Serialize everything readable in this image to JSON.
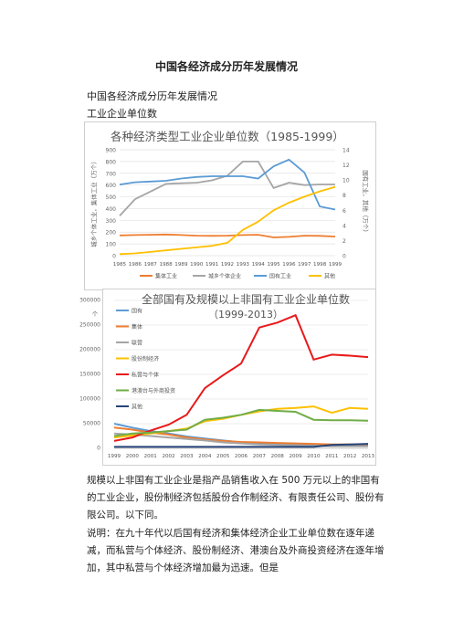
{
  "doc": {
    "title": "中国各经济成分历年发展情况",
    "subtitle": "中国各经济成分历年发展情况",
    "section": "工业企业单位数",
    "paragraph1": "规模以上非国有工业企业是指产品销售收入在 500 万元以上的非国有的工业企业，股份制经济包括股份合作制经济、有限责任公司、股份有限公司。以下同。",
    "paragraph2": "说明：在九十年代以后国有经济和集体经济企业工业单位数在逐年递减，而私营与个体经济、股份制经济、港澳台及外商投资经济在逐年增加，其中私营与个体经济增加最为迅速。但是"
  },
  "chart_data": [
    {
      "type": "line",
      "title": "各种经济类型工业企业单位数（1985-1999）",
      "ylabel": "城乡个体工业，集体工业（万个）",
      "y2label": "国有工业，其他（万个）",
      "x": [
        "1985",
        "1986",
        "1987",
        "1988",
        "1989",
        "1990",
        "1991",
        "1992",
        "1993",
        "1994",
        "1995",
        "1996",
        "1997",
        "1998",
        "1999"
      ],
      "ylim": [
        0,
        900
      ],
      "y2lim": [
        0,
        14
      ],
      "yticks": [
        "0",
        "100",
        "200",
        "300",
        "400",
        "500",
        "600",
        "700",
        "800",
        "900"
      ],
      "y2ticks": [
        "0",
        "2",
        "4",
        "6",
        "8",
        "10",
        "12",
        "14"
      ],
      "legend_position": "bottom",
      "series": [
        {
          "name": "集体工业",
          "axis": "left",
          "color": "#ed7d31",
          "values": [
            172,
            175,
            178,
            180,
            175,
            170,
            168,
            170,
            175,
            178,
            155,
            160,
            170,
            168,
            162
          ]
        },
        {
          "name": "城乡个体企业",
          "axis": "left",
          "color": "#a5a5a5",
          "values": [
            338,
            480,
            545,
            610,
            615,
            620,
            640,
            680,
            800,
            800,
            575,
            620,
            600,
            605,
            605
          ]
        },
        {
          "name": "国有工业",
          "axis": "right",
          "color": "#5b9bd5",
          "values": [
            9.4,
            9.7,
            9.8,
            9.9,
            10.2,
            10.4,
            10.5,
            10.5,
            10.5,
            10.2,
            11.8,
            12.7,
            11.0,
            6.5,
            6.1
          ]
        },
        {
          "name": "其他",
          "axis": "right",
          "color": "#ffc000",
          "values": [
            0.2,
            0.3,
            0.5,
            0.7,
            0.9,
            1.1,
            1.3,
            1.7,
            3.4,
            4.5,
            6.0,
            7.0,
            7.8,
            8.5,
            9.1
          ]
        }
      ]
    },
    {
      "type": "line",
      "title": "全部国有及规模以上非国有工业企业单位数",
      "subtitle": "（1999-2013）",
      "ylabel": "个",
      "x": [
        "1999",
        "2000",
        "2001",
        "2002",
        "2003",
        "2004",
        "2005",
        "2006",
        "2007",
        "2008",
        "2009",
        "2010",
        "2011",
        "2012",
        "2013"
      ],
      "ylim": [
        0,
        300000
      ],
      "yticks": [
        "0",
        "50000",
        "100000",
        "150000",
        "200000",
        "250000",
        "300000"
      ],
      "legend_position": "top-left",
      "series": [
        {
          "name": "国有",
          "color": "#5b9bd5",
          "values": [
            50000,
            42000,
            35000,
            30000,
            24000,
            20000,
            16000,
            12000,
            10000,
            9000,
            9000,
            8000,
            7000,
            7000,
            7000
          ]
        },
        {
          "name": "集体",
          "color": "#ed7d31",
          "values": [
            42000,
            38000,
            32000,
            28000,
            22000,
            18000,
            15000,
            13000,
            12000,
            11000,
            10000,
            9000,
            8000,
            8000,
            8000
          ]
        },
        {
          "name": "联营",
          "color": "#a5a5a5",
          "values": [
            30000,
            28000,
            25000,
            22000,
            19000,
            16000,
            12000,
            10000,
            8000,
            7000,
            6000,
            5000,
            4000,
            4000,
            4000
          ]
        },
        {
          "name": "股份制经济",
          "color": "#ffc000",
          "values": [
            22000,
            26000,
            30000,
            35000,
            40000,
            55000,
            60000,
            68000,
            75000,
            80000,
            82000,
            85000,
            72000,
            82000,
            80000
          ]
        },
        {
          "name": "私营与个体",
          "color": "#e8191a",
          "values": [
            15000,
            22000,
            36000,
            48000,
            68000,
            122000,
            148000,
            172000,
            245000,
            255000,
            270000,
            180000,
            190000,
            188000,
            185000
          ]
        },
        {
          "name": "港澳台与外商投资",
          "color": "#70ad47",
          "values": [
            25000,
            30000,
            32000,
            35000,
            38000,
            58000,
            62000,
            68000,
            78000,
            76000,
            74000,
            58000,
            57000,
            57000,
            56000
          ]
        },
        {
          "name": "其他",
          "color": "#264478",
          "values": [
            3000,
            3000,
            3000,
            3000,
            3000,
            3000,
            3000,
            3000,
            3000,
            3000,
            3000,
            3000,
            7000,
            8000,
            9000
          ]
        }
      ]
    }
  ]
}
